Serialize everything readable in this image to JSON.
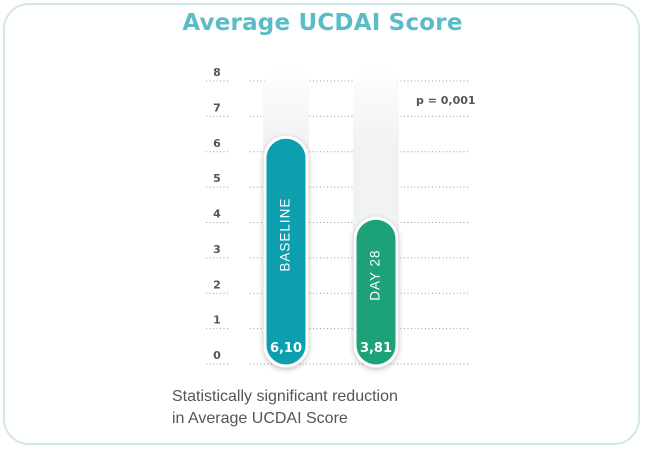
{
  "chart_data": {
    "type": "bar",
    "title": "Average UCDAI Score",
    "categories": [
      "BASELINE",
      "DAY 28"
    ],
    "values": [
      6.1,
      3.81
    ],
    "value_labels": [
      "6,10",
      "3,81"
    ],
    "yticks": [
      "0",
      "1",
      "2",
      "3",
      "4",
      "5",
      "6",
      "7",
      "8"
    ],
    "ylim": [
      0,
      8
    ],
    "annotation": "p = 0,001",
    "grid": true,
    "colors": [
      "#0c9fb0",
      "#1aa178"
    ],
    "track_color": "#f1f2f2"
  },
  "caption": {
    "line1": "Statistically significant reduction",
    "line2": "in Average UCDAI Score"
  }
}
